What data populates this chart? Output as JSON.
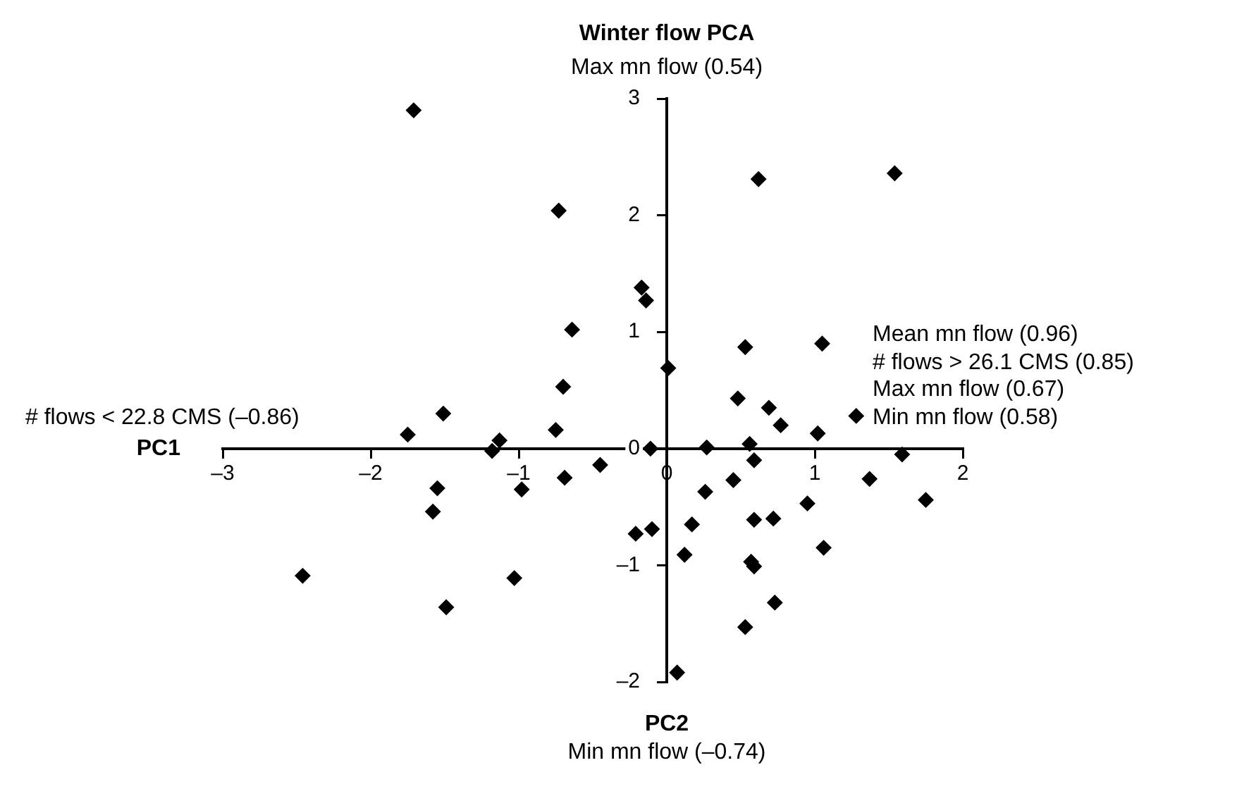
{
  "chart_data": {
    "type": "scatter",
    "title": "Winter flow PCA",
    "xlabel": "PC1",
    "annotations": [
      "Max mn flow (0.54)",
      "PC2",
      "Min mn flow (–0.74)",
      "# flows < 22.8 CMS (–0.86)",
      "Mean mn flow (0.96)",
      "# flows > 26.1 CMS (0.85)",
      "Max mn flow (0.67)",
      "Min mn flow (0.58)"
    ],
    "series": [
      {
        "color": "#000000",
        "x": [
          -1.71,
          -0.73,
          -0.17,
          -0.14,
          -0.64,
          0.01,
          -0.7,
          -1.51,
          -1.75,
          -0.75,
          -1.13,
          -1.18,
          -0.11,
          0.62,
          1.54,
          0.53,
          1.05,
          0.48,
          0.69,
          0.77,
          1.02,
          1.28,
          0.27,
          0.56,
          -0.45,
          -0.69,
          -0.98,
          -1.55,
          -1.58,
          -2.46,
          -1.03,
          -1.49,
          -0.21,
          -0.1,
          0.07,
          0.12,
          0.59,
          1.59,
          0.45,
          0.26,
          1.37,
          1.75,
          0.95,
          0.17,
          0.59,
          0.72,
          1.06,
          0.57,
          0.59,
          0.73,
          0.53
        ],
        "values": [
          2.9,
          2.04,
          1.38,
          1.27,
          1.02,
          0.69,
          0.53,
          0.3,
          0.12,
          0.16,
          0.07,
          -0.02,
          0.0,
          2.31,
          2.36,
          0.87,
          0.9,
          0.43,
          0.35,
          0.2,
          0.13,
          0.28,
          0.01,
          0.04,
          -0.14,
          -0.25,
          -0.35,
          -0.34,
          -0.54,
          -1.09,
          -1.11,
          -1.36,
          -0.73,
          -0.69,
          -1.92,
          -0.91,
          -0.1,
          -0.05,
          -0.27,
          -0.37,
          -0.26,
          -0.44,
          -0.47,
          -0.65,
          -0.61,
          -0.6,
          -0.85,
          -0.97,
          -1.01,
          -1.32,
          -1.53
        ]
      }
    ],
    "xlim": [
      -3,
      2
    ],
    "xticks": [
      {
        "value": -3,
        "label": "–3"
      },
      {
        "value": -2,
        "label": "–2"
      },
      {
        "value": -1,
        "label": "–1"
      },
      0,
      1,
      2
    ],
    "ylim": [
      -2,
      3
    ],
    "yticks": [
      {
        "value": -2,
        "label": "–2"
      },
      {
        "value": -1,
        "label": "–1"
      },
      0,
      1,
      2,
      3
    ],
    "marker": "diamond",
    "grid": false,
    "legend": false
  }
}
